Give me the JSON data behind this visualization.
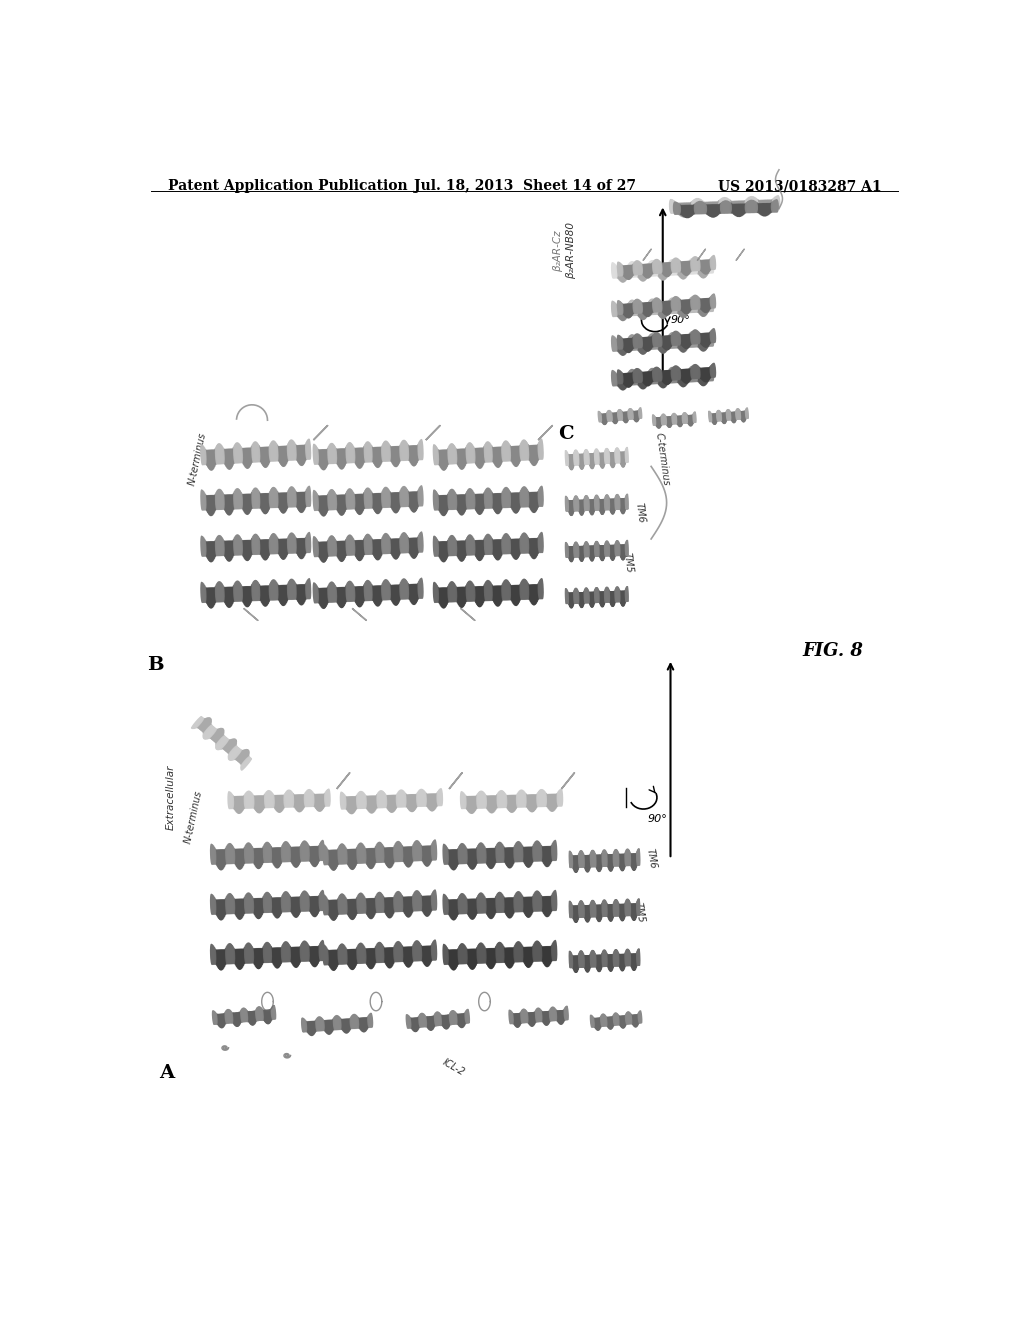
{
  "background_color": "#ffffff",
  "header_left": "Patent Application Publication",
  "header_center": "Jul. 18, 2013  Sheet 14 of 27",
  "header_right": "US 2013/0183287 A1",
  "fig_label": "FIG. 8",
  "panel_A_label": "A",
  "panel_B_label": "B",
  "panel_C_label": "C",
  "header_fontsize": 10,
  "fig_label_fontsize": 13
}
